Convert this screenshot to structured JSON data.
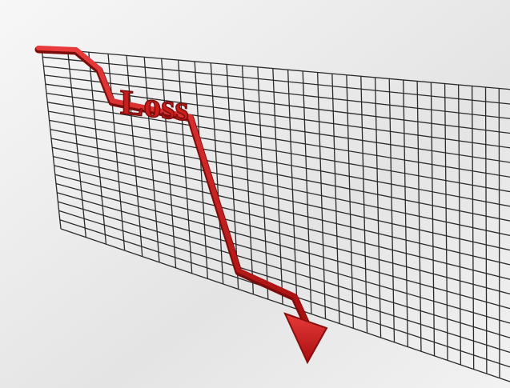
{
  "label": "Loss"
}
